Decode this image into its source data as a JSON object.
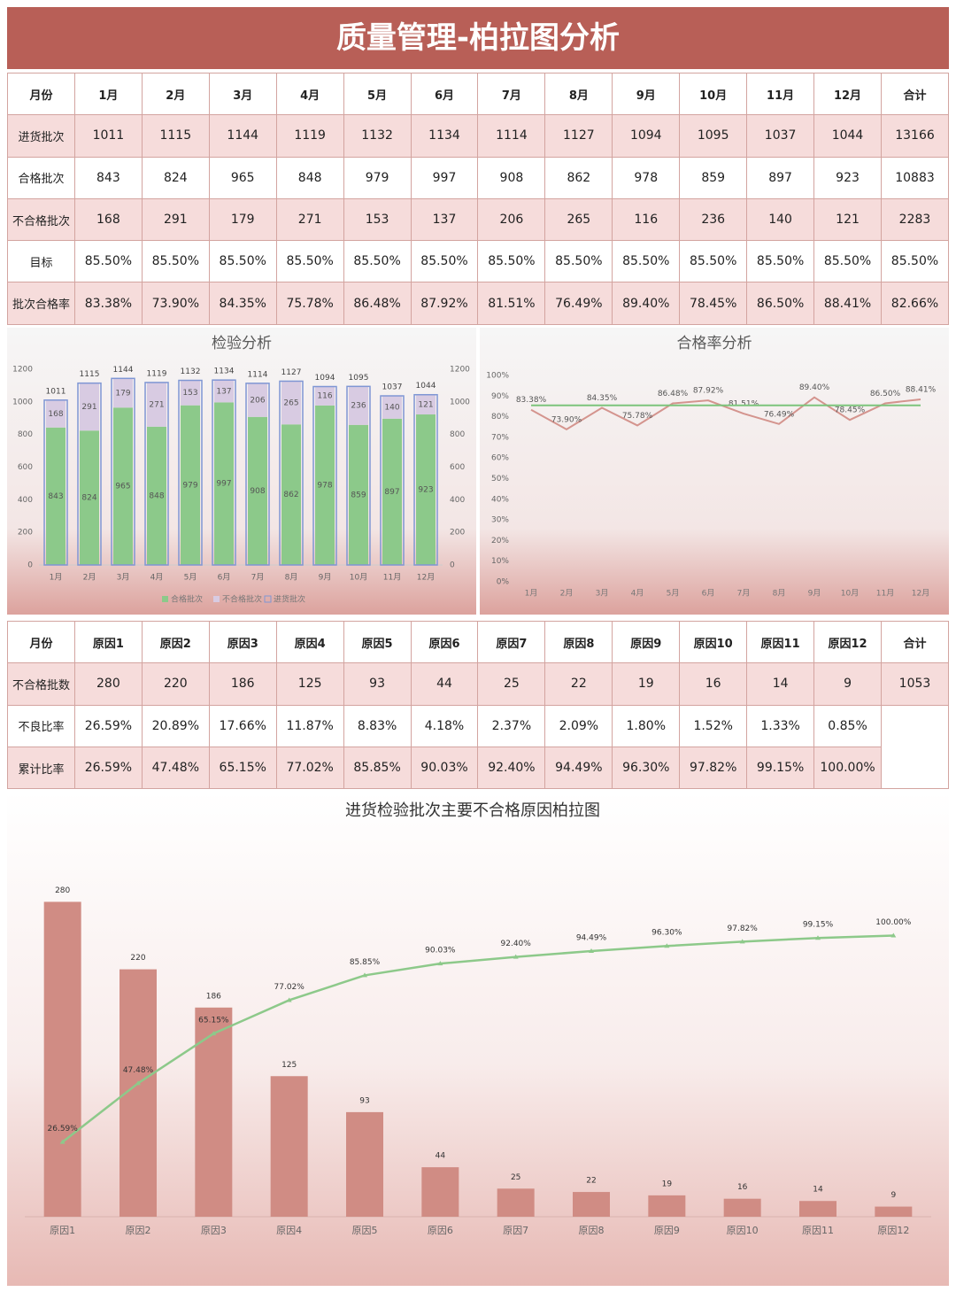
{
  "title": "质量管理-柏拉图分析",
  "table1": {
    "header": [
      "月份",
      "1月",
      "2月",
      "3月",
      "4月",
      "5月",
      "6月",
      "7月",
      "8月",
      "9月",
      "10月",
      "11月",
      "12月",
      "合计"
    ],
    "rows": [
      [
        "进货批次",
        "1011",
        "1115",
        "1144",
        "1119",
        "1132",
        "1134",
        "1114",
        "1127",
        "1094",
        "1095",
        "1037",
        "1044",
        "13166"
      ],
      [
        "合格批次",
        "843",
        "824",
        "965",
        "848",
        "979",
        "997",
        "908",
        "862",
        "978",
        "859",
        "897",
        "923",
        "10883"
      ],
      [
        "不合格批次",
        "168",
        "291",
        "179",
        "271",
        "153",
        "137",
        "206",
        "265",
        "116",
        "236",
        "140",
        "121",
        "2283"
      ],
      [
        "目标",
        "85.50%",
        "85.50%",
        "85.50%",
        "85.50%",
        "85.50%",
        "85.50%",
        "85.50%",
        "85.50%",
        "85.50%",
        "85.50%",
        "85.50%",
        "85.50%",
        "85.50%"
      ],
      [
        "批次合格率",
        "83.38%",
        "73.90%",
        "84.35%",
        "75.78%",
        "86.48%",
        "87.92%",
        "81.51%",
        "76.49%",
        "89.40%",
        "78.45%",
        "86.50%",
        "88.41%",
        "82.66%"
      ]
    ]
  },
  "table2": {
    "header": [
      "月份",
      "原因1",
      "原因2",
      "原因3",
      "原因4",
      "原因5",
      "原因6",
      "原因7",
      "原因8",
      "原因9",
      "原因10",
      "原因11",
      "原因12",
      "合计"
    ],
    "rows": [
      [
        "不合格批数",
        "280",
        "220",
        "186",
        "125",
        "93",
        "44",
        "25",
        "22",
        "19",
        "16",
        "14",
        "9",
        "1053"
      ],
      [
        "不良比率",
        "26.59%",
        "20.89%",
        "17.66%",
        "11.87%",
        "8.83%",
        "4.18%",
        "2.37%",
        "2.09%",
        "1.80%",
        "1.52%",
        "1.33%",
        "0.85%"
      ],
      [
        "累计比率",
        "26.59%",
        "47.48%",
        "65.15%",
        "77.02%",
        "85.85%",
        "90.03%",
        "92.40%",
        "94.49%",
        "96.30%",
        "97.82%",
        "99.15%",
        "100.00%"
      ]
    ]
  },
  "chart_data": [
    {
      "type": "bar",
      "title": "检验分析",
      "stacked": true,
      "categories": [
        "1月",
        "2月",
        "3月",
        "4月",
        "5月",
        "6月",
        "7月",
        "8月",
        "9月",
        "10月",
        "11月",
        "12月"
      ],
      "series": [
        {
          "name": "合格批次",
          "color": "#8cc98a",
          "values": [
            843,
            824,
            965,
            848,
            979,
            997,
            908,
            862,
            978,
            859,
            897,
            923
          ]
        },
        {
          "name": "不合格批次",
          "color": "#d8cbe2",
          "values": [
            168,
            291,
            179,
            271,
            153,
            137,
            206,
            265,
            116,
            236,
            140,
            121
          ]
        },
        {
          "name": "进货批次",
          "color": "#7f96d4",
          "outline": true,
          "values": [
            1011,
            1115,
            1144,
            1119,
            1132,
            1134,
            1114,
            1127,
            1094,
            1095,
            1037,
            1044
          ]
        }
      ],
      "ylim": [
        0,
        1200
      ],
      "yticks": [
        0,
        200,
        400,
        600,
        800,
        1000,
        1200
      ],
      "y2lim": [
        0,
        1200
      ],
      "y2ticks": [
        0,
        200,
        400,
        600,
        800,
        1000,
        1200
      ]
    },
    {
      "type": "line",
      "title": "合格率分析",
      "categories": [
        "1月",
        "2月",
        "3月",
        "4月",
        "5月",
        "6月",
        "7月",
        "8月",
        "9月",
        "10月",
        "11月",
        "12月"
      ],
      "series": [
        {
          "color": "#d4948e",
          "values": [
            83.38,
            73.9,
            84.35,
            75.78,
            86.48,
            87.92,
            81.51,
            76.49,
            89.4,
            78.45,
            86.5,
            88.41
          ],
          "value_labels": [
            "83.38%",
            "73.90%",
            "84.35%",
            "75.78%",
            "86.48%",
            "87.92%",
            "81.51%",
            "76.49%",
            "89.40%",
            "78.45%",
            "86.50%",
            "88.41%"
          ]
        },
        {
          "color": "#7cc47c",
          "values": [
            85.5,
            85.5,
            85.5,
            85.5,
            85.5,
            85.5,
            85.5,
            85.5,
            85.5,
            85.5,
            85.5,
            85.5
          ]
        }
      ],
      "ylim": [
        0,
        100
      ],
      "yticks": [
        {
          "value": 0,
          "label": "0%"
        },
        {
          "value": 10,
          "label": "10%"
        },
        {
          "value": 20,
          "label": "20%"
        },
        {
          "value": 30,
          "label": "30%"
        },
        {
          "value": 40,
          "label": "40%"
        },
        {
          "value": 50,
          "label": "50%"
        },
        {
          "value": 60,
          "label": "60%"
        },
        {
          "value": 70,
          "label": "70%"
        },
        {
          "value": 80,
          "label": "80%"
        },
        {
          "value": 90,
          "label": "90%"
        },
        {
          "value": 100,
          "label": "100%"
        }
      ]
    },
    {
      "type": "pareto",
      "title": "进货检验批次主要不合格原因柏拉图",
      "categories": [
        "原因1",
        "原因2",
        "原因3",
        "原因4",
        "原因5",
        "原因6",
        "原因7",
        "原因8",
        "原因9",
        "原因10",
        "原因11",
        "原因12"
      ],
      "series": [
        {
          "type": "bar",
          "color": "#d08c84",
          "values": [
            280,
            220,
            186,
            125,
            93,
            44,
            25,
            22,
            19,
            16,
            14,
            9
          ]
        },
        {
          "type": "line",
          "axis": "y2",
          "color": "#8dc98a",
          "values": [
            26.59,
            47.48,
            65.15,
            77.02,
            85.85,
            90.03,
            92.4,
            94.49,
            96.3,
            97.82,
            99.15,
            100.0
          ],
          "value_labels": [
            "26.59%",
            "47.48%",
            "65.15%",
            "77.02%",
            "85.85%",
            "90.03%",
            "92.40%",
            "94.49%",
            "96.30%",
            "97.82%",
            "99.15%",
            "100.00%"
          ]
        }
      ],
      "ylim": [
        0,
        300
      ],
      "y2lim": [
        0,
        120
      ]
    }
  ]
}
